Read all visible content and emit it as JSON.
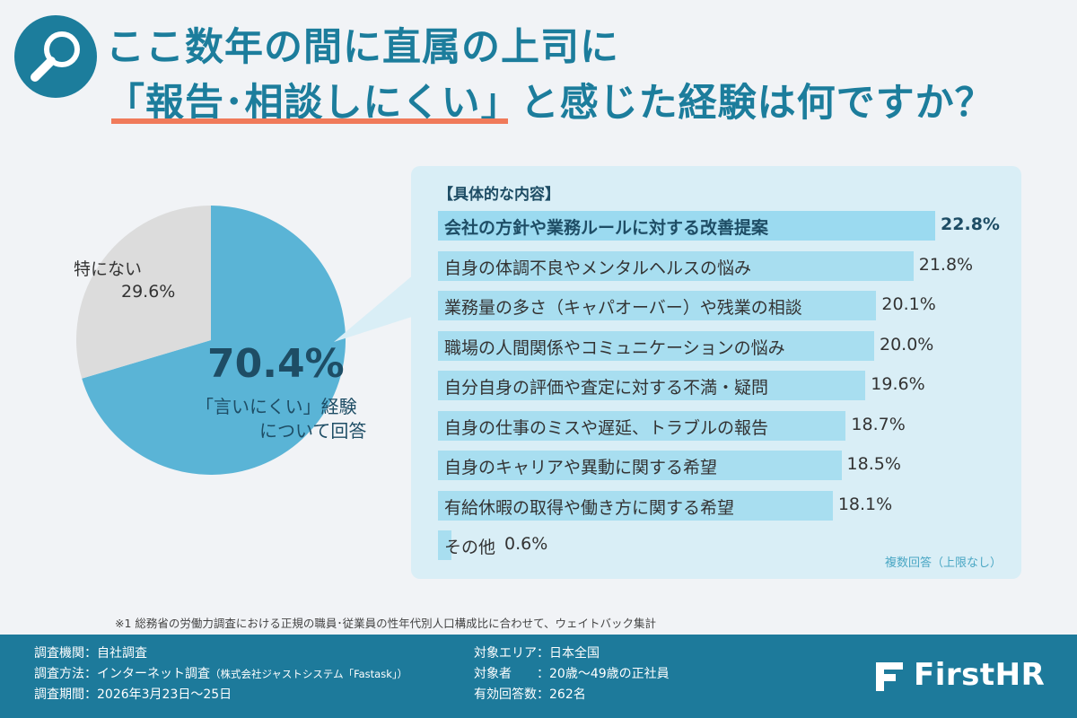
{
  "header": {
    "title_line_1": "ここ数年の間に直属の上司に",
    "title_line_2": "「報告･相談しにくい」と感じた経験は何ですか？",
    "icon": "magnifier-icon"
  },
  "chart_data": [
    {
      "type": "pie",
      "slices": [
        {
          "label": "「言いにくい」経験について回答",
          "value": 70.4,
          "color": "#5ab4d6"
        },
        {
          "label": "特にない",
          "value": 29.6,
          "color": "#dcdcdc"
        }
      ],
      "main_percent": "70.4%",
      "main_caption_1": "「言いにくい」経験",
      "main_caption_2": "について回答",
      "none_label": "特にない",
      "none_value": "29.6%"
    },
    {
      "type": "bar",
      "title": "【具体的な内容】",
      "note": "複数回答（上限なし）",
      "categories": [
        "会社の方針や業務ルールに対する改善提案",
        "自身の体調不良やメンタルヘルスの悩み",
        "業務量の多さ（キャパオーバー）や残業の相談",
        "職場の人間関係やコミュニケーションの悩み",
        "自分自身の評価や査定に対する不満・疑問",
        "自身の仕事のミスや遅延、トラブルの報告",
        "自身のキャリアや異動に関する希望",
        "有給休暇の取得や働き方に関する希望",
        "その他"
      ],
      "values": [
        22.8,
        21.8,
        20.1,
        20.0,
        19.6,
        18.7,
        18.5,
        18.1,
        0.6
      ],
      "value_labels": [
        "22.8%",
        "21.8%",
        "20.1%",
        "20.0%",
        "19.6%",
        "18.7%",
        "18.5%",
        "18.1%",
        "0.6%"
      ],
      "highlight_index": 0,
      "bar_color": "#a8def0"
    }
  ],
  "footnote": "※1 総務省の労働力調査における正規の職員･従業員の性年代別人口構成比に合わせて、ウェイトバック集計",
  "footer": {
    "rows_left": [
      {
        "label": "調査機関：自社調査",
        "suffix": ""
      },
      {
        "label": "調査方法：インターネット調査",
        "suffix": "（株式会社ジャストシステム「Fastask」）"
      },
      {
        "label": "調査期間：2026年3月23日〜25日",
        "suffix": ""
      }
    ],
    "rows_right": [
      {
        "label": "対象エリア：日本全国"
      },
      {
        "label": "対象者　　：20歳〜49歳の正社員"
      },
      {
        "label": "有効回答数：262名"
      }
    ],
    "brand": "FirstHR",
    "brand_icon": "firsthr-logo-icon"
  },
  "colors": {
    "title": "#1c7d9c",
    "accent_underline": "#f07a5a",
    "pie_main": "#5ab4d6",
    "pie_other": "#dcdcdc",
    "panel_bg": "#d9eef6",
    "footer_bg": "#1d7a9b"
  }
}
